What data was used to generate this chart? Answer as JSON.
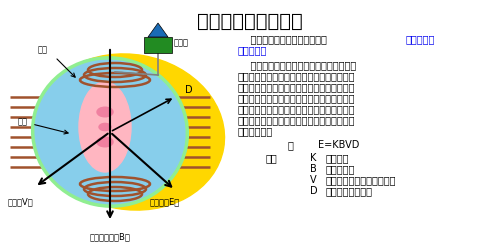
{
  "title": "电磁流量计原理介绍",
  "title_fontsize": 14,
  "background_color": "#ffffff",
  "intro_black": "    电磁流量计的测量原理是基于",
  "intro_blue": "法拉第电磁\n感应定律",
  "intro_period": "。",
  "body_text": "    上下两端的两个电磁线圈产生恒定或交变\n磁场，当导电介质流过电磁流量计时，流量计\n管壁上的电极可检测到感应电动势，这个感应\n电动势与导电介质流速、磁场的磁感应强度、\n导体宽度（流量计测量管内径）成正比，通过\n智能表头运算即可得到介质流量感应电动势工\n艺参数方程为",
  "formula_colon": "：",
  "formula_eq": "E=KBVD",
  "formula_rows": [
    [
      "式中",
      "K",
      "仪表常数"
    ],
    [
      "",
      "B",
      "磁感应强度"
    ],
    [
      "",
      "V",
      "测量管道截面内的平均流速"
    ],
    [
      "",
      "D",
      "测量管道截面的内"
    ]
  ],
  "label_xianquan": "线圈",
  "label_diankui": "电极",
  "label_zhuanhuanqi": "转换器",
  "label_D": "D",
  "label_dianya": "电压（V）",
  "label_ciganying": "磁感应强度（B）",
  "label_diandongshi": "电动势（E）",
  "coil_color": "#A0522D",
  "yellow_color": "#FFD700",
  "blue_color": "#87CEEB",
  "green_color": "#90EE90",
  "pink_color": "#FFB6C1",
  "converter_color": "#228B22",
  "triangle_color": "#1A6BB5",
  "arrow_color": "#000000",
  "text_color": "#000000",
  "blue_link_color": "#0000EE",
  "text_fontsize": 7,
  "label_fontsize": 6
}
